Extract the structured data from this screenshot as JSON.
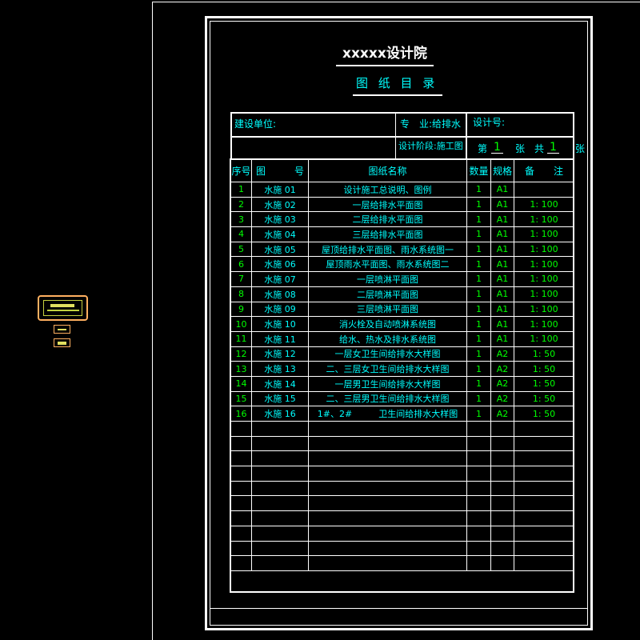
{
  "title": "xxxxx设计院",
  "subtitle": "图 纸 目 录",
  "header": {
    "client_label": "建设单位:",
    "discipline": "专　业:给排水",
    "design_no_label": "设计号:",
    "design_stage": "设计阶段:施工图",
    "sheet_prefix": "第",
    "sheet_no": "1",
    "sheet_mid": "张　共",
    "sheet_total": "1",
    "sheet_suffix": "张"
  },
  "columns": [
    "序号",
    "图　　　号",
    "图纸名称",
    "数量",
    "规格",
    "备　　注"
  ],
  "rows": [
    {
      "no": "1",
      "code": "水施 01",
      "name": "设计施工总说明、图例",
      "qty": "1",
      "size": "A1",
      "note": ""
    },
    {
      "no": "2",
      "code": "水施 02",
      "name": "一层给排水平面图",
      "qty": "1",
      "size": "A1",
      "note": "1: 100"
    },
    {
      "no": "3",
      "code": "水施 03",
      "name": "二层给排水平面图",
      "qty": "1",
      "size": "A1",
      "note": "1: 100"
    },
    {
      "no": "4",
      "code": "水施 04",
      "name": "三层给排水平面图",
      "qty": "1",
      "size": "A1",
      "note": "1: 100"
    },
    {
      "no": "5",
      "code": "水施 05",
      "name": "屋顶给排水平面图、雨水系统图一",
      "qty": "1",
      "size": "A1",
      "note": "1: 100"
    },
    {
      "no": "6",
      "code": "水施 06",
      "name": "屋顶雨水平面图、雨水系统图二",
      "qty": "1",
      "size": "A1",
      "note": "1: 100"
    },
    {
      "no": "7",
      "code": "水施 07",
      "name": "一层喷淋平面图",
      "qty": "1",
      "size": "A1",
      "note": "1: 100"
    },
    {
      "no": "8",
      "code": "水施 08",
      "name": "二层喷淋平面图",
      "qty": "1",
      "size": "A1",
      "note": "1: 100"
    },
    {
      "no": "9",
      "code": "水施 09",
      "name": "三层喷淋平面图",
      "qty": "1",
      "size": "A1",
      "note": "1: 100"
    },
    {
      "no": "10",
      "code": "水施 10",
      "name": "消火栓及自动喷淋系统图",
      "qty": "1",
      "size": "A1",
      "note": "1: 100"
    },
    {
      "no": "11",
      "code": "水施 11",
      "name": "给水、热水及排水系统图",
      "qty": "1",
      "size": "A1",
      "note": "1: 100"
    },
    {
      "no": "12",
      "code": "水施 12",
      "name": "一层女卫生间给排水大样图",
      "qty": "1",
      "size": "A2",
      "note": "1: 50"
    },
    {
      "no": "13",
      "code": "水施 13",
      "name": "二、三层女卫生间给排水大样图",
      "qty": "1",
      "size": "A2",
      "note": "1: 50"
    },
    {
      "no": "14",
      "code": "水施 14",
      "name": "一层男卫生间给排水大样图",
      "qty": "1",
      "size": "A2",
      "note": "1: 50"
    },
    {
      "no": "15",
      "code": "水施 15",
      "name": "二、三层男卫生间给排水大样图",
      "qty": "1",
      "size": "A2",
      "note": "1: 50"
    },
    {
      "no": "16",
      "code": "水施 16",
      "name": "1#、2#　　　卫生间给排水大样图",
      "qty": "1",
      "size": "A2",
      "note": "1: 50"
    }
  ],
  "colors": {
    "text_cyan": "#00ffff",
    "text_green": "#00ff00",
    "lines": "#ffffff",
    "background": "#000000",
    "stamp": "#ffb060"
  }
}
